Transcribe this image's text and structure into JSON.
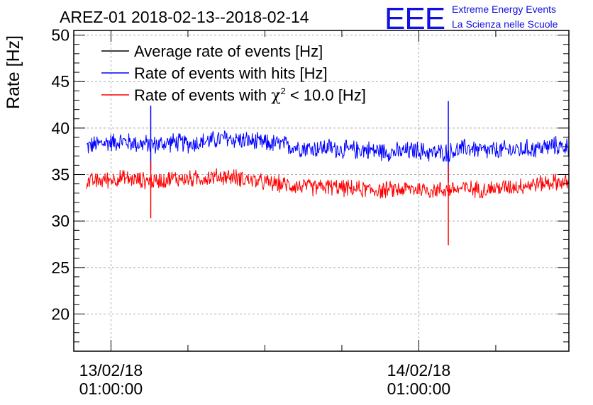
{
  "header": {
    "title": "AREZ-01 2018-02-13--2018-02-14",
    "logo_text": "EEE",
    "logo_line1": "Extreme Energy Events",
    "logo_line2": "La Scienza nelle Scuole",
    "logo_color": "#1010e0"
  },
  "chart_data": {
    "type": "line",
    "title": "AREZ-01 2018-02-13--2018-02-14",
    "xlabel": "",
    "ylabel": "Rate [Hz]",
    "ylim": [
      16,
      50.5
    ],
    "xlim_hours": [
      -2.9,
      35.7
    ],
    "x_unit": "hours since 13/02/18 01:00:00",
    "grid": true,
    "legend_position": "top-left",
    "y_ticks": [
      20,
      25,
      30,
      35,
      40,
      45,
      50
    ],
    "y_tick_labels": [
      "20",
      "25",
      "30",
      "35",
      "40",
      "45",
      "50"
    ],
    "x_ticks": [
      {
        "hours": 0,
        "date": "13/02/18",
        "time": "01:00:00"
      },
      {
        "hours": 24,
        "date": "14/02/18",
        "time": "01:00:00"
      }
    ],
    "x_minor_tick_step_hours": 6,
    "series": [
      {
        "name": "Average rate of events [Hz]",
        "legend_label": "Average rate of events [Hz]",
        "color": "#000000",
        "x_start": -1.9,
        "x_end": 38.6,
        "values": []
      },
      {
        "name": "Rate of events with hits [Hz]",
        "legend_label": "Rate of events with hits [Hz]",
        "color": "#0000ff",
        "x_start": -1.9,
        "x_end": 38.6,
        "values": [
          38.0,
          38.4,
          38.6,
          38.3,
          38.2,
          38.5,
          38.3,
          38.6,
          38.9,
          38.7,
          38.4,
          38.3,
          38.0,
          37.8,
          37.9,
          37.6,
          37.7,
          37.5,
          37.4,
          37.6,
          37.3,
          37.4,
          37.9,
          37.5,
          37.6,
          37.7,
          37.8,
          38.1,
          37.9,
          37.8,
          37.7
        ],
        "noise": 1.0,
        "spikes": [
          {
            "x": 3.1,
            "y_max": 42.4,
            "y_min": 35.5
          },
          {
            "x": 26.3,
            "y_max": 42.9,
            "y_min": 34.2
          }
        ]
      },
      {
        "name": "Rate of events with χ² < 10.0 [Hz]",
        "legend_label": "Rate of events with",
        "legend_symbol": "χ",
        "legend_exp": "2",
        "legend_tail": "< 10.0 [Hz]",
        "color": "#ff0000",
        "x_start": -1.9,
        "x_end": 38.6,
        "values": [
          34.2,
          34.4,
          34.6,
          34.4,
          34.3,
          34.6,
          34.5,
          34.7,
          34.8,
          34.6,
          34.2,
          34.0,
          33.8,
          33.6,
          33.7,
          33.5,
          33.4,
          33.3,
          33.4,
          33.5,
          33.3,
          33.4,
          33.5,
          33.4,
          33.6,
          33.8,
          34.0,
          34.2,
          34.1,
          33.9,
          33.7
        ],
        "noise": 0.9,
        "spikes": [
          {
            "x": 3.1,
            "y_max": 36.4,
            "y_min": 30.3
          },
          {
            "x": 26.3,
            "y_max": 36.0,
            "y_min": 27.4
          }
        ]
      }
    ]
  }
}
